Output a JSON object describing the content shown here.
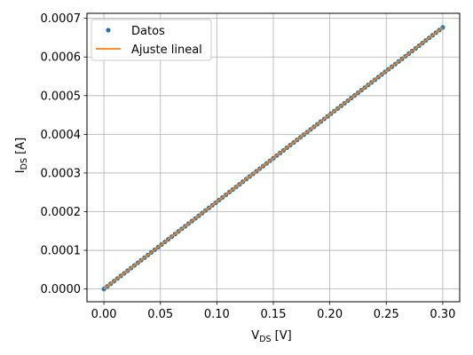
{
  "chart_data": {
    "type": "line",
    "title": "",
    "xlabel": {
      "main": "V",
      "sub": "DS",
      "unit": " [V]"
    },
    "ylabel": {
      "main": "I",
      "sub": "DS",
      "unit": " [A]"
    },
    "xlim": [
      -0.015,
      0.315
    ],
    "ylim": [
      -3.3e-05,
      0.000713
    ],
    "xticks": [
      0.0,
      0.05,
      0.1,
      0.15,
      0.2,
      0.25,
      0.3
    ],
    "xtick_labels": [
      "0.00",
      "0.05",
      "0.10",
      "0.15",
      "0.20",
      "0.25",
      "0.30"
    ],
    "yticks": [
      0.0,
      0.0001,
      0.0002,
      0.0003,
      0.0004,
      0.0005,
      0.0006,
      0.0007
    ],
    "ytick_labels": [
      "0.0000",
      "0.0001",
      "0.0002",
      "0.0003",
      "0.0004",
      "0.0005",
      "0.0006",
      "0.0007"
    ],
    "grid": true,
    "legend": "top-left",
    "series": [
      {
        "name": "Datos",
        "kind": "markers",
        "color": "#1f77b4",
        "x_start": 0.0,
        "x_end": 0.3,
        "n_points": 101,
        "slope": 0.002255,
        "intercept": 0.0
      },
      {
        "name": "Ajuste lineal",
        "kind": "line",
        "color": "#ff7f0e",
        "x": [
          0.0,
          0.3
        ],
        "y": [
          0.0,
          0.0006765
        ]
      }
    ]
  }
}
